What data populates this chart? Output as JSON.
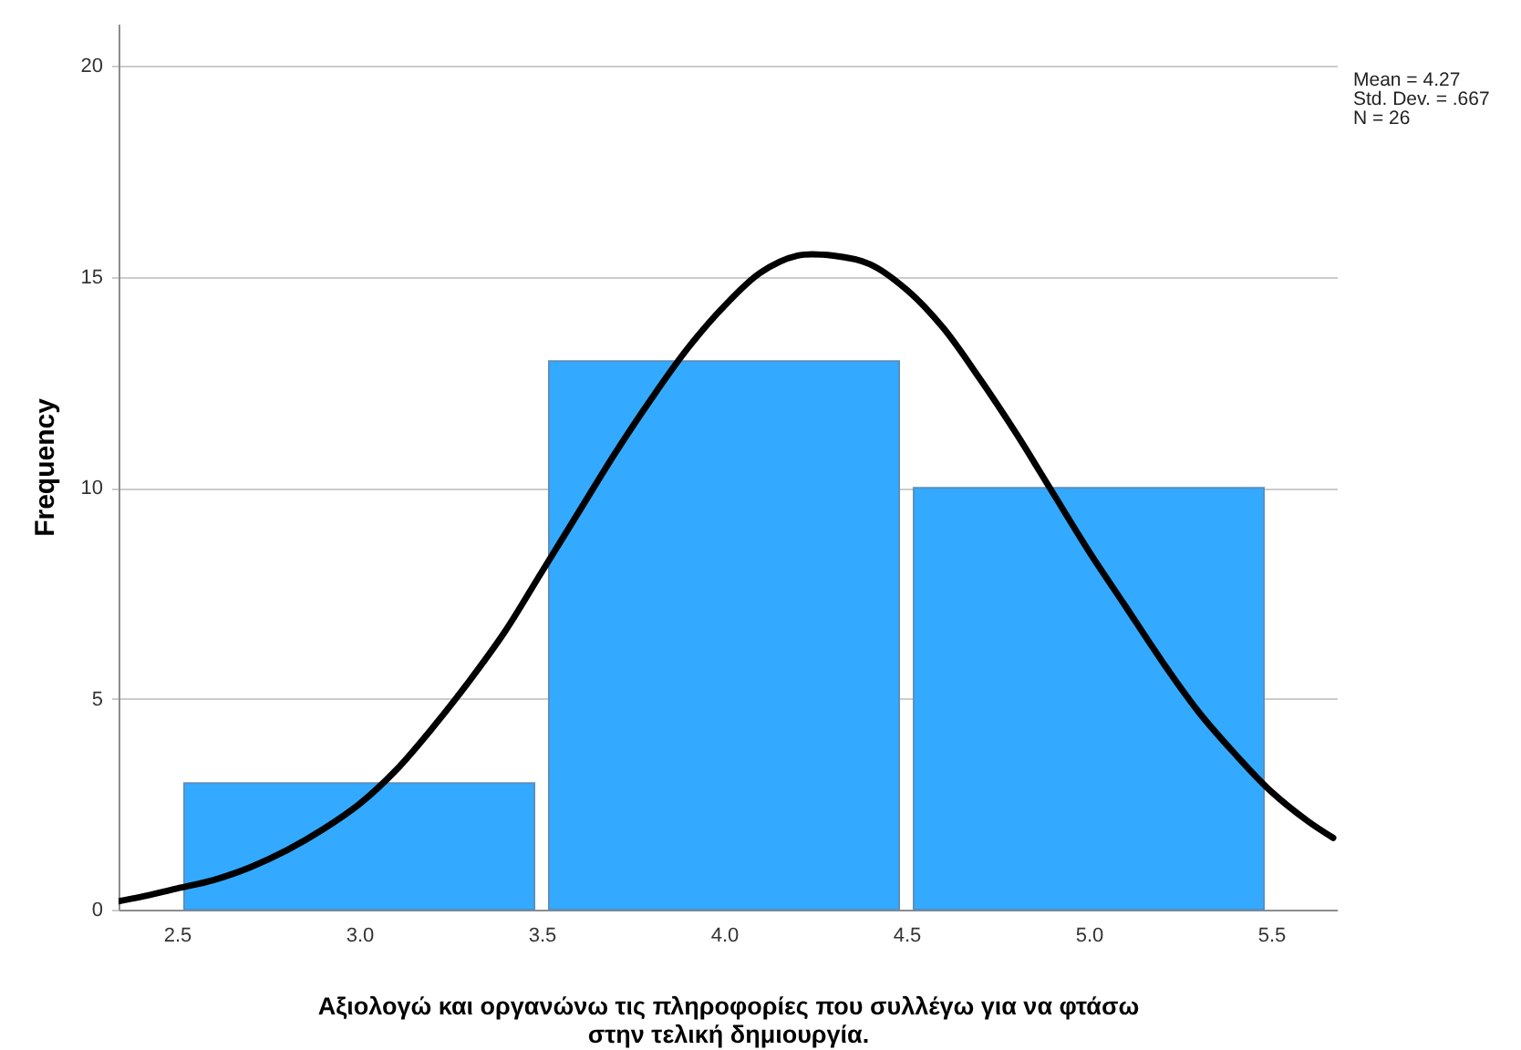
{
  "chart_data": {
    "type": "histogram",
    "bins": [
      2.5,
      3.5,
      4.5,
      5.5
    ],
    "values": [
      3,
      13,
      10
    ],
    "color": "#33aaff",
    "xlabel": "Αξιολογώ και οργανώνω τις πληροφορίες που συλλέγω για να φτάσω στην τελική δημιουργία.",
    "ylabel": "Frequency",
    "annotations": [
      "Mean = 4.27",
      "Std. Dev. = .667",
      "N = 26"
    ],
    "xlim": [
      2.34,
      5.68
    ],
    "ylim": [
      0,
      21
    ],
    "xticks": [
      2.5,
      {
        "value": 3,
        "label": "3.0"
      },
      3.5,
      {
        "value": 4,
        "label": "4.0"
      },
      4.5,
      {
        "value": 5,
        "label": "5.0"
      },
      5.5
    ],
    "yticks": [
      0,
      5,
      10,
      15,
      20
    ],
    "grid": "y",
    "series": [
      {
        "type": "line",
        "color": "#000000",
        "x": [
          2.34,
          2.4,
          2.5,
          2.6,
          2.7,
          2.8,
          2.9,
          3.0,
          3.1,
          3.2,
          3.3,
          3.4,
          3.5,
          3.6,
          3.7,
          3.8,
          3.9,
          4.0,
          4.1,
          4.2,
          4.3,
          4.4,
          4.5,
          4.6,
          4.7,
          4.8,
          4.9,
          5.0,
          5.1,
          5.2,
          5.3,
          5.4,
          5.5,
          5.6,
          5.67
        ],
        "values": [
          0.2,
          0.3,
          0.5,
          0.7,
          1.0,
          1.4,
          1.9,
          2.5,
          3.3,
          4.3,
          5.4,
          6.6,
          8.0,
          9.4,
          10.8,
          12.1,
          13.3,
          14.3,
          15.1,
          15.5,
          15.5,
          15.3,
          14.7,
          13.8,
          12.6,
          11.3,
          9.9,
          8.5,
          7.2,
          5.9,
          4.7,
          3.7,
          2.8,
          2.1,
          1.7
        ]
      }
    ]
  }
}
